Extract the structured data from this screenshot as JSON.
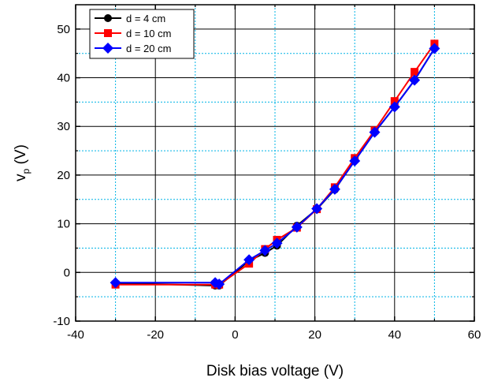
{
  "chart_data": {
    "type": "line",
    "title": "",
    "xlabel": "Disk bias voltage (V)",
    "ylabel_main": "v",
    "ylabel_sub": "p",
    "ylabel_suffix": " (V)",
    "xlim": [
      -40,
      60
    ],
    "ylim": [
      -10,
      55
    ],
    "x_major_ticks": [
      -40,
      -20,
      0,
      20,
      40,
      60
    ],
    "y_major_ticks": [
      -10,
      0,
      10,
      20,
      30,
      40,
      50
    ],
    "x_tick_labels": [
      "-40",
      "-20",
      "0",
      "20",
      "40",
      "60"
    ],
    "y_tick_labels": [
      "-10",
      "0",
      "10",
      "20",
      "30",
      "40",
      "50"
    ],
    "x_minor_ticks": [
      -30,
      -10,
      10,
      30,
      50
    ],
    "y_minor_ticks": [
      -5,
      5,
      15,
      25,
      35,
      45
    ],
    "grid": true,
    "legend_position": "top-left",
    "series": [
      {
        "name": "d = 4 cm",
        "color": "#000000",
        "marker": "circle",
        "x": [
          -30,
          -5,
          -4,
          3.5,
          7.5,
          10.5,
          15.5,
          20.5,
          25,
          30,
          35,
          40,
          45,
          50
        ],
        "y": [
          -2.2,
          -2.7,
          -2.7,
          2.4,
          4.0,
          5.5,
          9.6,
          13.0,
          17.0,
          23.0,
          28.8,
          34.0,
          39.5,
          46.0
        ]
      },
      {
        "name": "d = 10 cm",
        "color": "#ff0000",
        "marker": "square",
        "x": [
          -30,
          -5,
          -4,
          3.5,
          7.5,
          10.5,
          15.5,
          20.5,
          25,
          30,
          35,
          40,
          45,
          50
        ],
        "y": [
          -2.5,
          -2.5,
          -2.5,
          1.8,
          4.8,
          6.7,
          9.2,
          13.0,
          17.5,
          23.5,
          29.2,
          35.2,
          41.2,
          47.0
        ]
      },
      {
        "name": "d = 20 cm",
        "color": "#0000ff",
        "marker": "diamond",
        "x": [
          -30,
          -5,
          -4,
          3.5,
          7.5,
          10.5,
          15.5,
          20.5,
          25,
          30,
          35,
          40,
          45,
          50
        ],
        "y": [
          -2.1,
          -2.1,
          -2.4,
          2.6,
          4.5,
          6.0,
          9.3,
          13.1,
          17.1,
          22.9,
          28.8,
          34.0,
          39.5,
          46.0
        ]
      }
    ]
  }
}
